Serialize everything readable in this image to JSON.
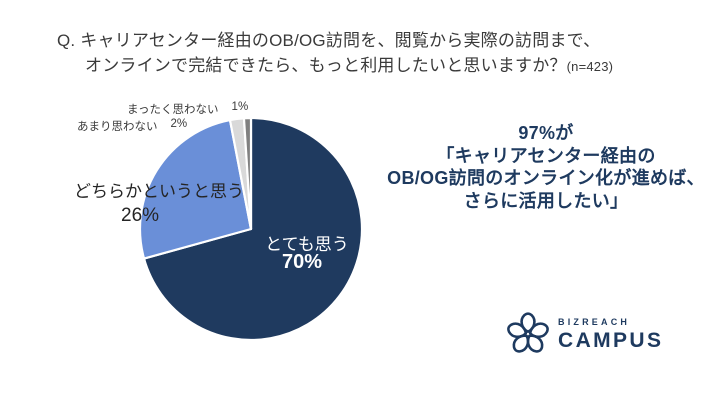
{
  "question": {
    "line1": "Q. キャリアセンター経由のOB/OG訪問を、閲覧から実際の訪問まで、",
    "line2": "オンラインで完結できたら、もっと利用したいと思いますか？",
    "sample_size": "(n=423)"
  },
  "chart_data": {
    "type": "pie",
    "title": "キャリアセンター経由のOB/OG訪問のオンライン完結利用意向",
    "n": 423,
    "start_angle_deg": 0,
    "direction": "clockwise",
    "legend": "none",
    "slices": [
      {
        "label": "とても思う",
        "value": 70,
        "pct_label": "70%",
        "color": "#1f3a5f",
        "label_position": "inside"
      },
      {
        "label": "どちらかというと思う",
        "value": 26,
        "pct_label": "26%",
        "color": "#6a8fd8",
        "label_position": "outside-left"
      },
      {
        "label": "あまり思わない",
        "value": 2,
        "pct_label": "2%",
        "color": "#d9d9d9",
        "label_position": "outside-top"
      },
      {
        "label": "まったく思わない",
        "value": 1,
        "pct_label": "1%",
        "color": "#808080",
        "label_position": "outside-top"
      }
    ],
    "slice_border_color": "#ffffff"
  },
  "callout": {
    "line1": "97%が",
    "line2": "「キャリアセンター経由の",
    "line3": "OB/OG訪問のオンライン化が進めば、",
    "line4": "さらに活用したい」",
    "color": "#1e3a5f"
  },
  "logo": {
    "brand": "BIZREACH",
    "product": "CAMPUS",
    "mark": "flower-icon",
    "color": "#1e3a5f"
  }
}
